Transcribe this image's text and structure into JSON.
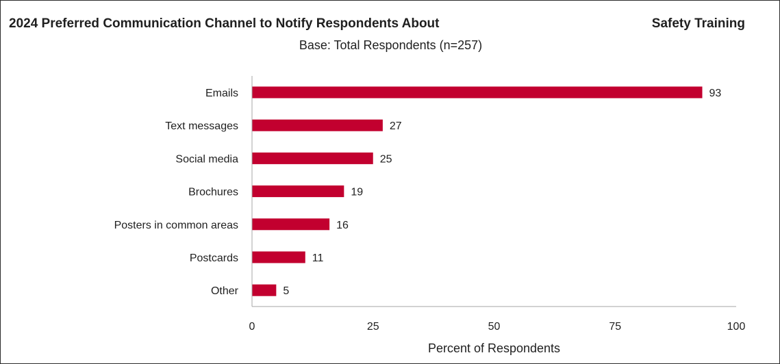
{
  "title_left": "2024 Preferred Communication Channel to Notify Respondents About",
  "title_right": "Safety Training",
  "subtitle": "Base: Total Respondents (n=257)",
  "colors": {
    "bar": "#c2002f",
    "axis": "#a6a6a6"
  },
  "chart_data": {
    "type": "bar",
    "orientation": "horizontal",
    "categories": [
      "Emails",
      "Text messages",
      "Social media",
      "Brochures",
      "Posters in common areas",
      "Postcards",
      "Other"
    ],
    "values": [
      93,
      27,
      25,
      19,
      16,
      11,
      5
    ],
    "xlabel": "Percent of Respondents",
    "xlim": [
      0,
      100
    ],
    "xticks": [
      0,
      25,
      50,
      75,
      100
    ],
    "grid": false
  }
}
